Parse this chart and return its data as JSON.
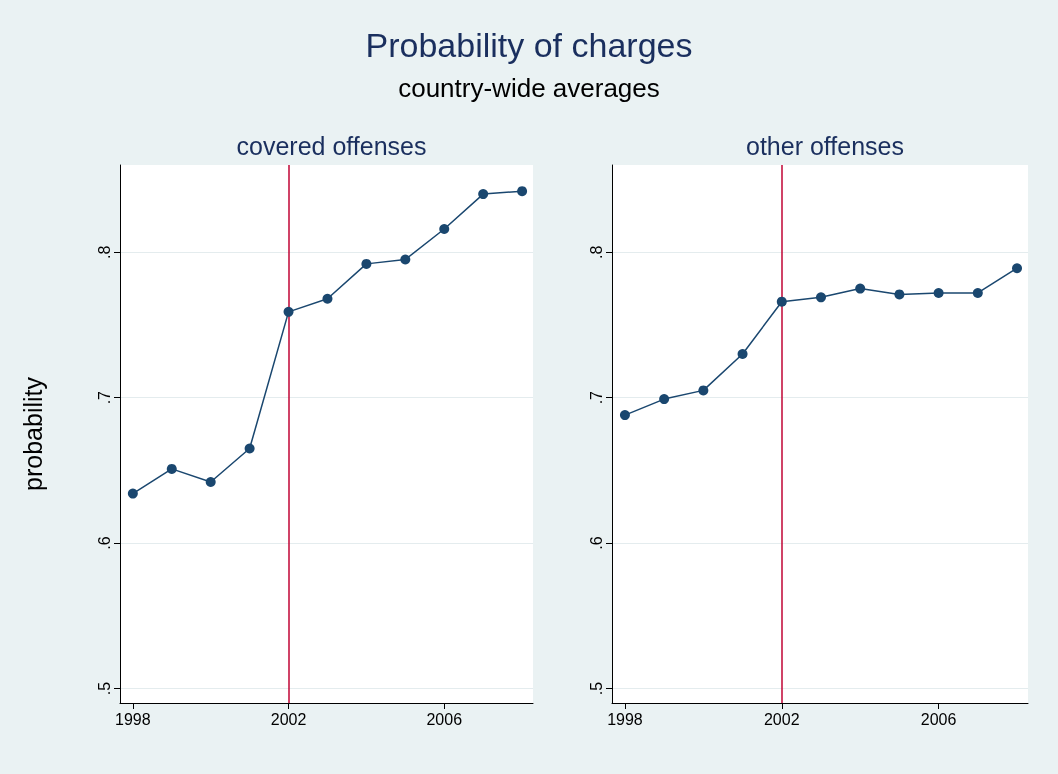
{
  "chart_data": [
    {
      "type": "line",
      "title": "covered offenses",
      "annotations": [
        "Probability of charges",
        "country-wide averages"
      ],
      "ylabel": "probability",
      "x": [
        1998,
        1999,
        2000,
        2001,
        2002,
        2003,
        2004,
        2005,
        2006,
        2007,
        2008
      ],
      "series": [
        {
          "color": "#1a476f",
          "values": [
            0.634,
            0.651,
            0.642,
            0.665,
            0.759,
            0.768,
            0.792,
            0.795,
            0.816,
            0.84,
            0.842
          ]
        }
      ],
      "xlim": [
        1997.67,
        2008.28
      ],
      "xticks": [
        1998,
        2002,
        2006
      ],
      "ylim": [
        0.49,
        0.86
      ],
      "yticks": [
        {
          "value": 0.5,
          "label": ".5"
        },
        {
          "value": 0.6,
          "label": ".6"
        },
        {
          "value": 0.7,
          "label": ".7"
        },
        {
          "value": 0.8,
          "label": ".8"
        }
      ],
      "ref_lines": [
        {
          "axis": "x",
          "value": 2002,
          "color": "#c10534"
        }
      ],
      "grid": "y",
      "marker": "circle",
      "line_style": "solid"
    },
    {
      "type": "line",
      "title": "other offenses",
      "x": [
        1998,
        1999,
        2000,
        2001,
        2002,
        2003,
        2004,
        2005,
        2006,
        2007,
        2008
      ],
      "series": [
        {
          "color": "#1a476f",
          "values": [
            0.688,
            0.699,
            0.705,
            0.73,
            0.766,
            0.769,
            0.775,
            0.771,
            0.772,
            0.772,
            0.789
          ]
        }
      ],
      "xlim": [
        1997.67,
        2008.28
      ],
      "xticks": [
        1998,
        2002,
        2006
      ],
      "ylim": [
        0.49,
        0.86
      ],
      "yticks": [
        {
          "value": 0.5,
          "label": ".5"
        },
        {
          "value": 0.6,
          "label": ".6"
        },
        {
          "value": 0.7,
          "label": ".7"
        },
        {
          "value": 0.8,
          "label": ".8"
        }
      ],
      "ref_lines": [
        {
          "axis": "x",
          "value": 2002,
          "color": "#c10534"
        }
      ],
      "grid": "y",
      "marker": "circle",
      "line_style": "solid"
    }
  ]
}
